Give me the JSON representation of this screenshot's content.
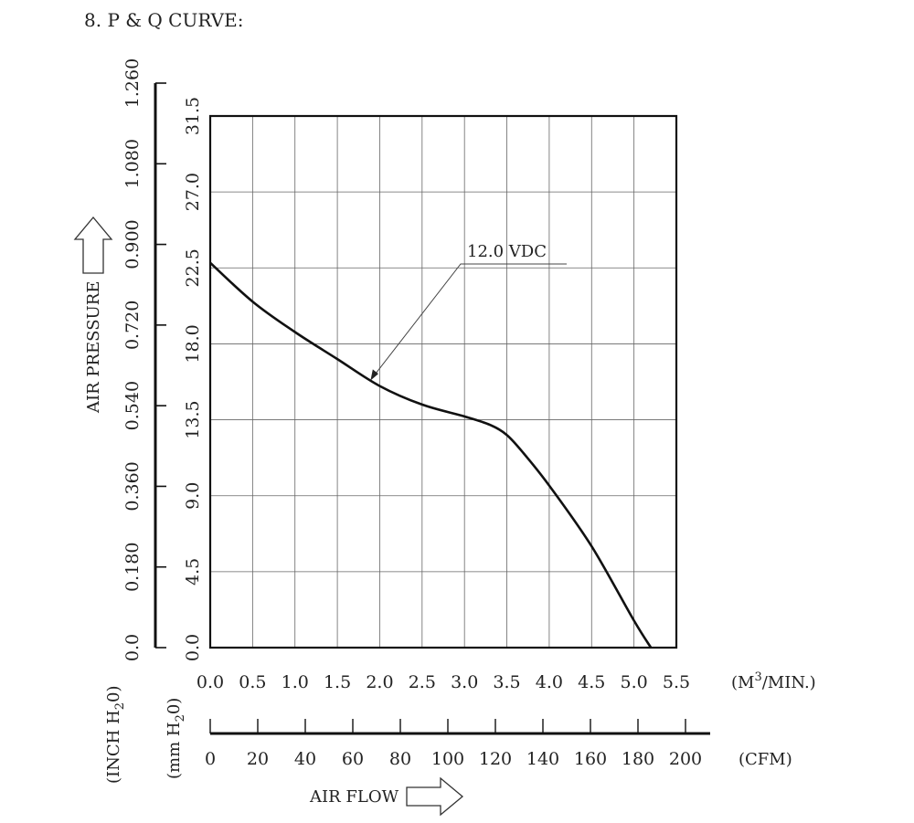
{
  "heading": "8. P & Q CURVE:",
  "chart_data": {
    "type": "line",
    "x_unit_primary": "(M",
    "x_unit_primary_exp": "3",
    "x_unit_primary_tail": "/MIN.)",
    "x_unit_secondary": "(CFM)",
    "xlabel": "AIR FLOW",
    "ylabel": "AIR PRESSURE",
    "y_unit_mm": "(mm H",
    "y_unit_inch": "(INCH H",
    "y_unit_sub": "2",
    "y_unit_tail": "0)",
    "x_ticks_m3": [
      "0.0",
      "0.5",
      "1.0",
      "1.5",
      "2.0",
      "2.5",
      "3.0",
      "3.5",
      "4.0",
      "4.5",
      "5.0",
      "5.5"
    ],
    "x_ticks_cfm": [
      "0",
      "20",
      "40",
      "60",
      "80",
      "100",
      "120",
      "140",
      "160",
      "180",
      "200"
    ],
    "y_ticks_mm": [
      "0.0",
      "4.5",
      "9.0",
      "13.5",
      "18.0",
      "22.5",
      "27.0",
      "31.5"
    ],
    "y_ticks_inch": [
      "0.0",
      "0.180",
      "0.360",
      "0.540",
      "0.720",
      "0.900",
      "1.080",
      "1.260"
    ],
    "xlim": [
      0,
      5.5
    ],
    "ylim": [
      0,
      31.5
    ],
    "cfm_lim": [
      0,
      200
    ],
    "inch_lim": [
      0,
      1.26
    ],
    "grid": true,
    "series": [
      {
        "name": "12.0 VDC",
        "x": [
          0.0,
          0.5,
          1.0,
          1.5,
          2.0,
          2.5,
          3.0,
          3.3,
          3.5,
          3.7,
          4.0,
          4.5,
          5.0,
          5.2
        ],
        "y": [
          22.8,
          20.5,
          18.7,
          17.1,
          15.5,
          14.4,
          13.7,
          13.2,
          12.6,
          11.5,
          9.6,
          6.0,
          1.6,
          0.0
        ]
      }
    ]
  }
}
